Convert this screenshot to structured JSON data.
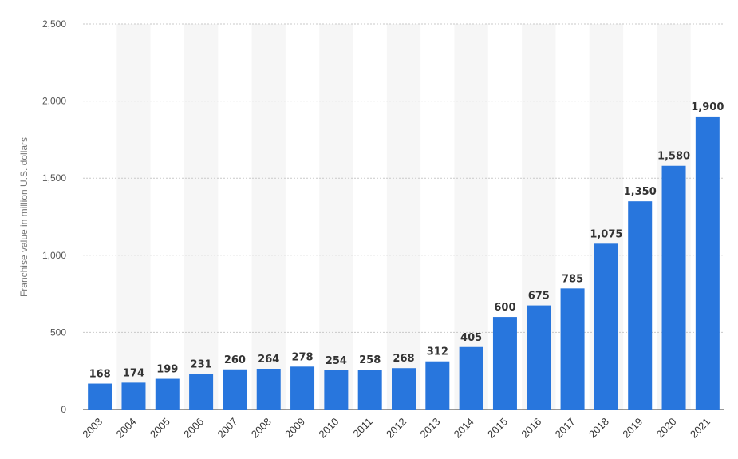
{
  "chart_data": {
    "type": "bar",
    "title": "",
    "xlabel": "",
    "ylabel": "Franchise value in million U.S. dollars",
    "categories": [
      "2003",
      "2004",
      "2005",
      "2006",
      "2007",
      "2008",
      "2009",
      "2010",
      "2011",
      "2012",
      "2013",
      "2014",
      "2015",
      "2016",
      "2017",
      "2018",
      "2019",
      "2020",
      "2021"
    ],
    "values": [
      168,
      174,
      199,
      231,
      260,
      264,
      278,
      254,
      258,
      268,
      312,
      405,
      600,
      675,
      785,
      1075,
      1350,
      1580,
      1900
    ],
    "value_labels": [
      "168",
      "174",
      "199",
      "231",
      "260",
      "264",
      "278",
      "254",
      "258",
      "268",
      "312",
      "405",
      "600",
      "675",
      "785",
      "1,075",
      "1,350",
      "1,580",
      "1,900"
    ],
    "ylim": [
      0,
      2500
    ],
    "yticks": [
      0,
      500,
      1000,
      1500,
      2000,
      2500
    ],
    "ytick_labels": [
      "0",
      "500",
      "1,000",
      "1,500",
      "2,000",
      "2,500"
    ],
    "grid": true,
    "bar_color": "#2876dd"
  }
}
